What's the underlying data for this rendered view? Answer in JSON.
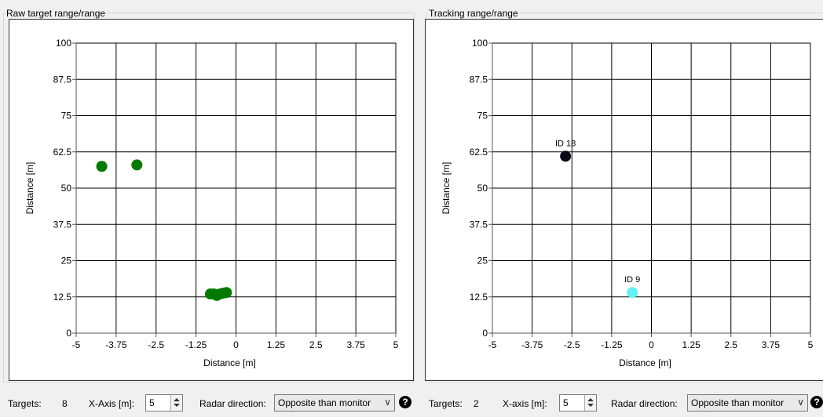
{
  "left_panel": {
    "title": "Raw target range/range",
    "targets_label": "Targets:",
    "targets_value": "8",
    "xaxis_label": "X-Axis [m]:",
    "xaxis_value": "5",
    "radar_label": "Radar direction:",
    "radar_value": "Opposite than monitor"
  },
  "right_panel": {
    "title": "Tracking range/range",
    "targets_label": "Targets:",
    "targets_value": "2",
    "xaxis_label": "X-axis [m]:",
    "xaxis_value": "5",
    "radar_label": "Radar direction:",
    "radar_value": "Opposite than monitor"
  },
  "chart_data": [
    {
      "type": "scatter",
      "title": "Raw target range/range",
      "xlabel": "Distance [m]",
      "ylabel": "Distance [m]",
      "xlim": [
        -5,
        5
      ],
      "ylim": [
        0,
        100
      ],
      "xticks": [
        "-5",
        "-3.75",
        "-2.5",
        "-1.25",
        "0",
        "1.25",
        "2.5",
        "3.75",
        "5"
      ],
      "xtick_values": [
        -5,
        -3.75,
        -2.5,
        -1.25,
        0,
        1.25,
        2.5,
        3.75,
        5
      ],
      "yticks": [
        "0",
        "12.5",
        "25",
        "37.5",
        "50",
        "62.5",
        "75",
        "87.5",
        "100"
      ],
      "ytick_values": [
        0,
        12.5,
        25,
        37.5,
        50,
        62.5,
        75,
        87.5,
        100
      ],
      "grid": true,
      "series": [
        {
          "color": "#007a00",
          "points": [
            {
              "x": -4.2,
              "y": 57.5
            },
            {
              "x": -3.1,
              "y": 58.0
            },
            {
              "x": -0.8,
              "y": 13.5
            },
            {
              "x": -0.7,
              "y": 13.5
            },
            {
              "x": -0.6,
              "y": 13.0
            },
            {
              "x": -0.5,
              "y": 13.5
            },
            {
              "x": -0.4,
              "y": 13.8
            },
            {
              "x": -0.3,
              "y": 14.0
            }
          ]
        }
      ]
    },
    {
      "type": "scatter",
      "title": "Tracking range/range",
      "xlabel": "Distance [m]",
      "ylabel": "Distance [m]",
      "xlim": [
        -5,
        5
      ],
      "ylim": [
        0,
        100
      ],
      "xticks": [
        "-5",
        "-3.75",
        "-2.5",
        "-1.25",
        "0",
        "1.25",
        "2.5",
        "3.75",
        "5"
      ],
      "xtick_values": [
        -5,
        -3.75,
        -2.5,
        -1.25,
        0,
        1.25,
        2.5,
        3.75,
        5
      ],
      "yticks": [
        "0",
        "12.5",
        "25",
        "37.5",
        "50",
        "62.5",
        "75",
        "87.5",
        "100"
      ],
      "ytick_values": [
        0,
        12.5,
        25,
        37.5,
        50,
        62.5,
        75,
        87.5,
        100
      ],
      "grid": true,
      "series": [
        {
          "points": [
            {
              "x": -2.7,
              "y": 61.0,
              "label": "ID 18",
              "color": "#0a0a14"
            },
            {
              "x": -0.6,
              "y": 14.0,
              "label": "ID 9",
              "color": "#5ff2f2"
            }
          ]
        }
      ]
    }
  ]
}
